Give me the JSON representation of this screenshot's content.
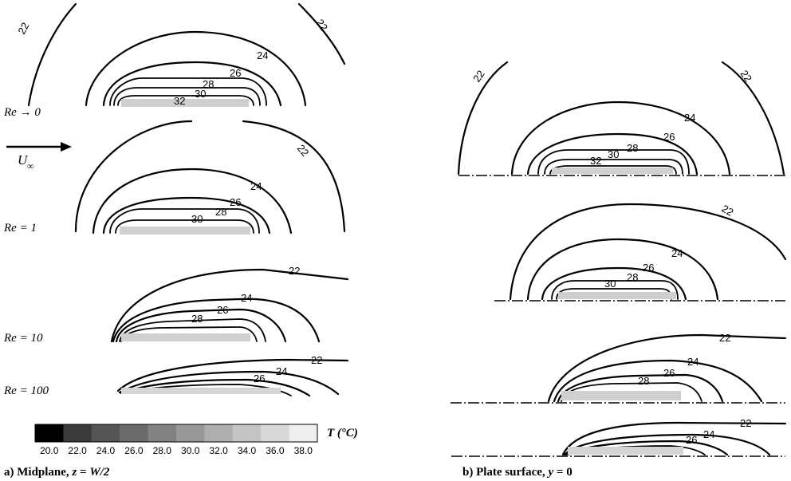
{
  "panel_a": {
    "caption_prefix": "a) Midplane, ",
    "caption_var": "z",
    "caption_eq": " = ",
    "caption_val": "W/2",
    "flow_label": "U",
    "flow_sub": "∞",
    "rows": [
      {
        "label": "Re → 0",
        "levels": [
          "22",
          "24",
          "26",
          "28",
          "30",
          "32"
        ]
      },
      {
        "label": "Re = 1",
        "levels": [
          "22",
          "24",
          "26",
          "28",
          "30"
        ]
      },
      {
        "label": "Re = 10",
        "levels": [
          "22",
          "24",
          "26",
          "28"
        ]
      },
      {
        "label": "Re = 100",
        "levels": [
          "22",
          "24",
          "26"
        ]
      }
    ]
  },
  "panel_b": {
    "caption_prefix": "b) Plate surface, ",
    "caption_var": "y",
    "caption_eq": " = ",
    "caption_val": "0",
    "rows": [
      {
        "levels": [
          "22",
          "24",
          "26",
          "28",
          "30",
          "32"
        ]
      },
      {
        "levels": [
          "22",
          "24",
          "26",
          "28",
          "30"
        ]
      },
      {
        "levels": [
          "22",
          "24",
          "26",
          "28"
        ]
      },
      {
        "levels": [
          "22",
          "24",
          "26"
        ]
      }
    ]
  },
  "colorbar": {
    "label": "T (°C)",
    "ticks": [
      "20.0",
      "22.0",
      "24.0",
      "26.0",
      "28.0",
      "30.0",
      "32.0",
      "34.0",
      "36.0",
      "38.0"
    ],
    "colors": [
      "#000000",
      "#3a3a3a",
      "#555555",
      "#6c6c6c",
      "#828282",
      "#989898",
      "#aeaeae",
      "#c4c4c4",
      "#d9d9d9",
      "#eeeeee"
    ]
  }
}
